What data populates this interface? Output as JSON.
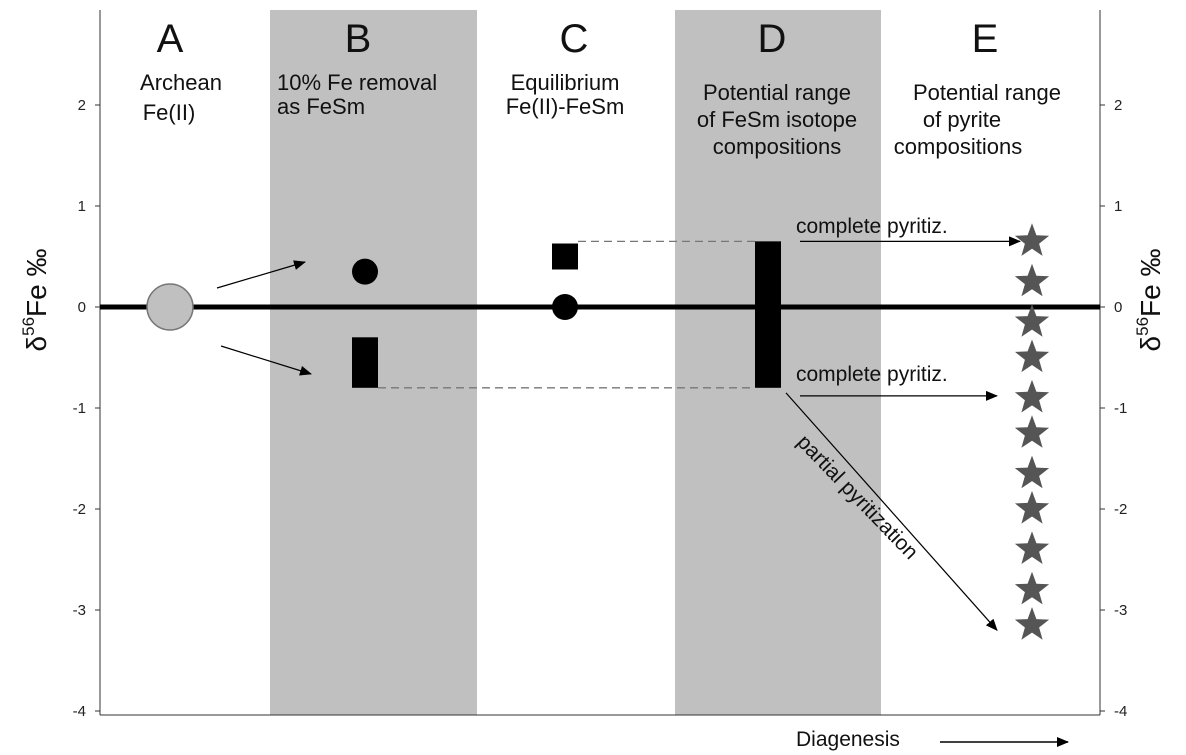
{
  "columns": [
    {
      "letter": "A",
      "desc": [
        "Archean",
        "Fe(II)"
      ],
      "shaded": false
    },
    {
      "letter": "B",
      "desc": [
        "10% Fe removal",
        "as FeSm"
      ],
      "shaded": true
    },
    {
      "letter": "C",
      "desc": [
        "Equilibrium",
        "Fe(II)-FeSm"
      ],
      "shaded": false
    },
    {
      "letter": "D",
      "desc": [
        "Potential range",
        "of FeSm isotope",
        "compositions"
      ],
      "shaded": true
    },
    {
      "letter": "E",
      "desc": [
        "Potential range",
        "of pyrite",
        "compositions"
      ],
      "shaded": false
    }
  ],
  "axis": {
    "ylabel_left": "δ56Fe ‰",
    "ylabel_right": "δ56Fe ‰",
    "ylabel_base": "δ",
    "ylabel_sup": "56",
    "ylabel_rest": "Fe ‰",
    "ylim": [
      -4,
      3
    ],
    "ticks": [
      2,
      1,
      0,
      -1,
      -2,
      -3,
      -4
    ],
    "tick_labels": [
      "2",
      "1",
      "0",
      "-1",
      "-2",
      "-3",
      "-4"
    ],
    "xlabel": "Diagenesis"
  },
  "annotations": {
    "complete_top": "complete pyritiz.",
    "complete_bottom": "complete pyritiz.",
    "partial": "partial pyritization"
  },
  "chart_data": {
    "type": "scatter",
    "ylabel": "δ56Fe ‰",
    "ylim": [
      -4,
      3
    ],
    "zero_line": 0,
    "points": [
      {
        "column": "A",
        "marker": "large-gray-circle",
        "y": 0
      },
      {
        "column": "B",
        "marker": "black-circle",
        "y": 0.35
      },
      {
        "column": "B",
        "marker": "black-bar",
        "y_range": [
          -0.8,
          -0.3
        ]
      },
      {
        "column": "C",
        "marker": "black-square",
        "y": 0.5
      },
      {
        "column": "C",
        "marker": "black-circle",
        "y": 0
      },
      {
        "column": "D",
        "marker": "black-bar",
        "y_range": [
          -0.8,
          0.65
        ]
      }
    ],
    "stars": {
      "column": "E",
      "y": [
        0.65,
        0.25,
        -0.15,
        -0.5,
        -0.9,
        -1.25,
        -1.65,
        -2.0,
        -2.4,
        -2.8,
        -3.15
      ]
    },
    "colors": {
      "shade": "#c0c0c0",
      "gray_circle": "#c0c0c0",
      "star": "#555555",
      "marker": "#000000"
    }
  }
}
